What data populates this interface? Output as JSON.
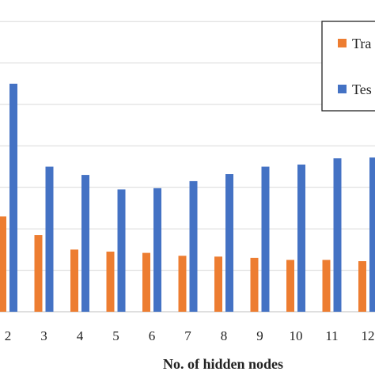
{
  "chart_data": {
    "type": "bar",
    "xlabel": "No. of hidden nodes",
    "ylabel": "",
    "categories": [
      "2",
      "3",
      "4",
      "5",
      "6",
      "7",
      "8",
      "9",
      "10",
      "11",
      "12"
    ],
    "ylim": [
      0,
      7.5
    ],
    "grid": true,
    "legend_position": "top-right",
    "series": [
      {
        "name": "Tra",
        "color": "#ED7D31",
        "values": [
          2.3,
          1.85,
          1.5,
          1.45,
          1.42,
          1.35,
          1.33,
          1.3,
          1.25,
          1.25,
          1.22
        ]
      },
      {
        "name": "Tes",
        "color": "#4472C4",
        "values": [
          5.5,
          3.5,
          3.3,
          2.95,
          2.98,
          3.15,
          3.32,
          3.5,
          3.55,
          3.7,
          3.72
        ]
      }
    ]
  }
}
